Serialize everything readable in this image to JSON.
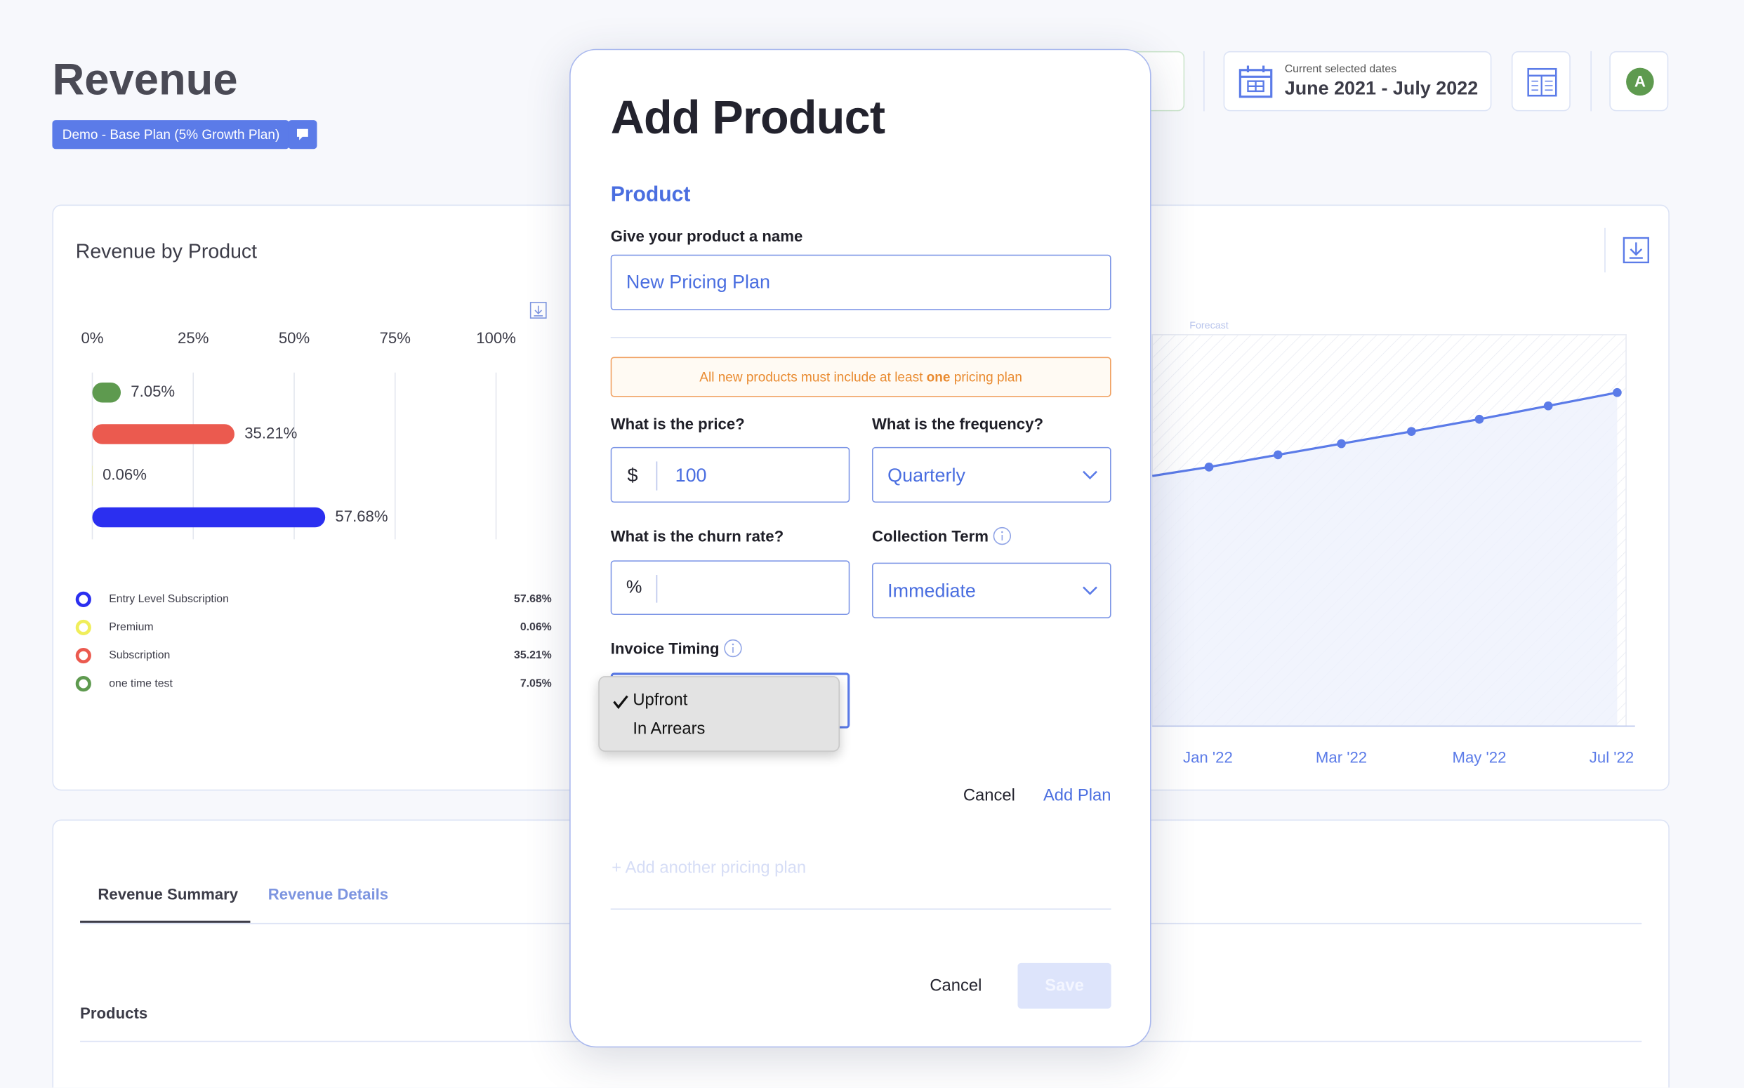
{
  "header": {
    "title": "Revenue",
    "plan_badge": "Demo - Base Plan (5% Growth Plan)",
    "date_caption": "Current selected dates",
    "date_range": "June 2021 - July 2022",
    "avatar": "A"
  },
  "chart_data": {
    "type": "bar",
    "orientation": "horizontal",
    "title": "Revenue by Product",
    "categories": [
      "one time test",
      "Subscription",
      "Premium",
      "Entry Level Subscription"
    ],
    "values": [
      7.05,
      35.21,
      0.06,
      57.68
    ],
    "value_labels": [
      "7.05%",
      "35.21%",
      "0.06%",
      "57.68%"
    ],
    "colors": [
      "#5e9a4f",
      "#eb5a4f",
      "#f0ee5b",
      "#2b2ff0"
    ],
    "xlim": [
      0,
      100
    ],
    "xticks": [
      {
        "value": 0,
        "label": "0%"
      },
      {
        "value": 25,
        "label": "25%"
      },
      {
        "value": 50,
        "label": "50%"
      },
      {
        "value": 75,
        "label": "75%"
      },
      {
        "value": 100,
        "label": "100%"
      }
    ],
    "grid": true
  },
  "trend_chart": {
    "annotation": "Forecast",
    "x_labels": [
      "Jan '22",
      "Mar '22",
      "May '22",
      "Jul '22"
    ]
  },
  "tabs": [
    "Revenue Summary",
    "Revenue Details"
  ],
  "section": "Products",
  "modal": {
    "title": "Add Product",
    "section": "Product",
    "name_label": "Give your product a name",
    "name_value": "New Pricing Plan",
    "warning": {
      "before": "All new products must include at least ",
      "bold": "one",
      "after": " pricing plan"
    },
    "price_label": "What is the price?",
    "price_prefix": "$",
    "price_value": "100",
    "frequency_label": "What is the frequency?",
    "frequency_value": "Quarterly",
    "churn_label": "What is the churn rate?",
    "churn_prefix": "%",
    "collection_label": "Collection Term",
    "collection_value": "Immediate",
    "invoice_label": "Invoice Timing",
    "invoice_options": [
      "Upfront",
      "In Arrears"
    ],
    "plan_cancel": "Cancel",
    "plan_add": "Add Plan",
    "add_another": "+ Add another pricing plan",
    "cancel": "Cancel",
    "save": "Save"
  }
}
